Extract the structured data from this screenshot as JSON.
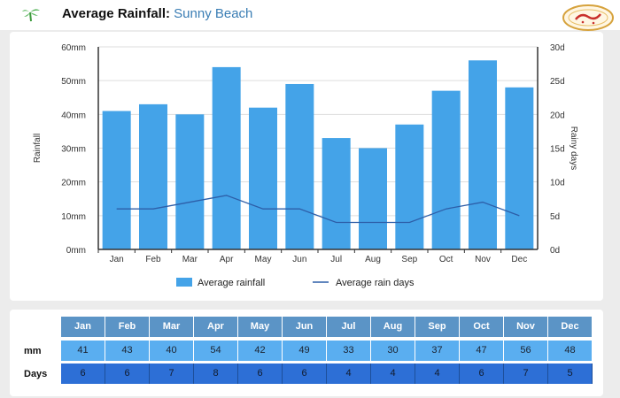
{
  "header": {
    "title": "Average Rainfall:",
    "location": "Sunny Beach"
  },
  "colors": {
    "bar": "#44a3e8",
    "line": "#2d5ea8",
    "axis": "#333333",
    "grid": "#dddddd",
    "header_cell": "#5b94c6",
    "mm_cell": "#5aaef0",
    "days_cell": "#2d6fd6"
  },
  "icons": {
    "header_icon": "palm-tree-icon",
    "logo": "site-logo"
  },
  "chart_data": {
    "type": "bar",
    "categories": [
      "Jan",
      "Feb",
      "Mar",
      "Apr",
      "May",
      "Jun",
      "Jul",
      "Aug",
      "Sep",
      "Oct",
      "Nov",
      "Dec"
    ],
    "series": [
      {
        "name": "Average rainfall",
        "type": "bar",
        "axis": "left",
        "values": [
          41,
          43,
          40,
          54,
          42,
          49,
          33,
          30,
          37,
          47,
          56,
          48
        ]
      },
      {
        "name": "Average rain days",
        "type": "line",
        "axis": "right",
        "values": [
          6,
          6,
          7,
          8,
          6,
          6,
          4,
          4,
          4,
          6,
          7,
          5
        ]
      }
    ],
    "ylabel": "Rainfall",
    "y2label": "Rainy days",
    "ylim": [
      0,
      60
    ],
    "y2lim": [
      0,
      30
    ],
    "yticks": [
      "0mm",
      "10mm",
      "20mm",
      "30mm",
      "40mm",
      "50mm",
      "60mm"
    ],
    "y2ticks": [
      "0d",
      "5d",
      "10d",
      "15d",
      "20d",
      "25d",
      "30d"
    ],
    "grid": true,
    "legend": "bottom"
  },
  "table": {
    "row_labels": [
      "mm",
      "Days"
    ],
    "months": [
      "Jan",
      "Feb",
      "Mar",
      "Apr",
      "May",
      "Jun",
      "Jul",
      "Aug",
      "Sep",
      "Oct",
      "Nov",
      "Dec"
    ],
    "mm": [
      "41",
      "43",
      "40",
      "54",
      "42",
      "49",
      "33",
      "30",
      "37",
      "47",
      "56",
      "48"
    ],
    "days": [
      "6",
      "6",
      "7",
      "8",
      "6",
      "6",
      "4",
      "4",
      "4",
      "6",
      "7",
      "5"
    ]
  }
}
